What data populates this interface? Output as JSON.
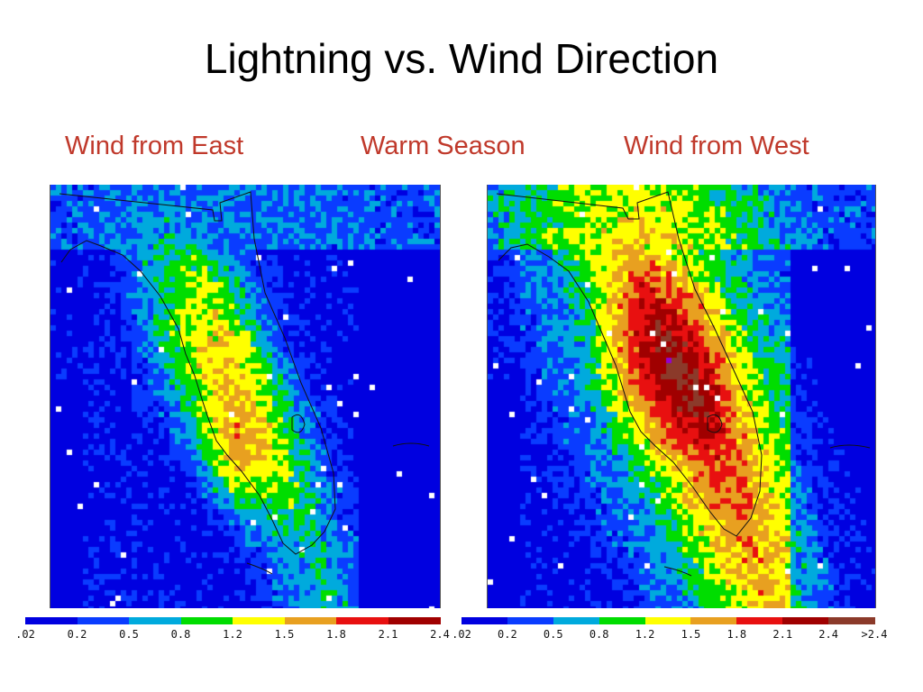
{
  "slide": {
    "title": "Lightning vs. Wind Direction",
    "subtitle_left": "Wind from East",
    "subtitle_center": "Warm Season",
    "subtitle_right": "Wind from West",
    "subtitle_color": "#c0392b"
  },
  "maps": [
    {
      "name": "Wind from East",
      "pattern": "west-coast-maximum"
    },
    {
      "name": "Wind from West",
      "pattern": "east-coast-maximum"
    }
  ],
  "colorbar": {
    "colors": [
      "#0000e0",
      "#0a3cff",
      "#00aadd",
      "#00dd00",
      "#ffff00",
      "#e8a020",
      "#e81010",
      "#a00000",
      "#8b3a2a",
      "#9400d3"
    ],
    "left_ticks": [
      ".02",
      "0.2",
      "0.5",
      "0.8",
      "1.2",
      "1.5",
      "1.8",
      "2.1",
      "2.4"
    ],
    "right_ticks": [
      ".02",
      "0.2",
      "0.5",
      "0.8",
      "1.2",
      "1.5",
      "1.8",
      "2.1",
      "2.4",
      ">2.4"
    ]
  }
}
